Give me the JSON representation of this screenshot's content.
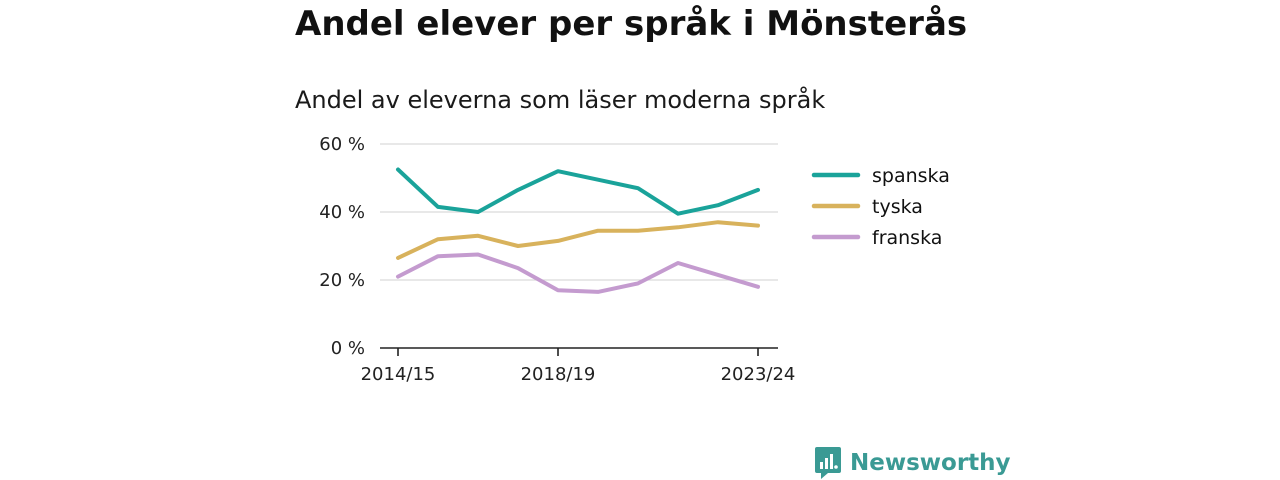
{
  "title": "Andel elever per språk i Mönsterås",
  "subtitle": "Andel av eleverna som läser moderna språk",
  "brand": {
    "name": "Newsworthy",
    "logo_icon": "newsworthy-logo-icon",
    "color": "#3a9a94"
  },
  "chart_data": {
    "type": "line",
    "x": [
      "2014/15",
      "2015/16",
      "2016/17",
      "2017/18",
      "2018/19",
      "2019/20",
      "2020/21",
      "2021/22",
      "2022/23",
      "2023/24"
    ],
    "x_tick_labels": [
      "2014/15",
      "2018/19",
      "2023/24"
    ],
    "y_tick_labels": [
      "0 %",
      "20 %",
      "40 %",
      "60 %"
    ],
    "y_ticks": [
      0,
      20,
      40,
      60
    ],
    "ylim": [
      0,
      60
    ],
    "grid": true,
    "legend_position": "right",
    "series": [
      {
        "name": "spanska",
        "color": "#1aa39a",
        "values": [
          52.5,
          41.5,
          40,
          46.5,
          52,
          49.5,
          47,
          39.5,
          42,
          46.5
        ]
      },
      {
        "name": "tyska",
        "color": "#d8b25c",
        "values": [
          26.5,
          32,
          33,
          30,
          31.5,
          34.5,
          34.5,
          35.5,
          37,
          36
        ]
      },
      {
        "name": "franska",
        "color": "#c49bcf",
        "values": [
          21,
          27,
          27.5,
          23.5,
          17,
          16.5,
          19,
          25,
          21.5,
          18
        ]
      }
    ]
  }
}
